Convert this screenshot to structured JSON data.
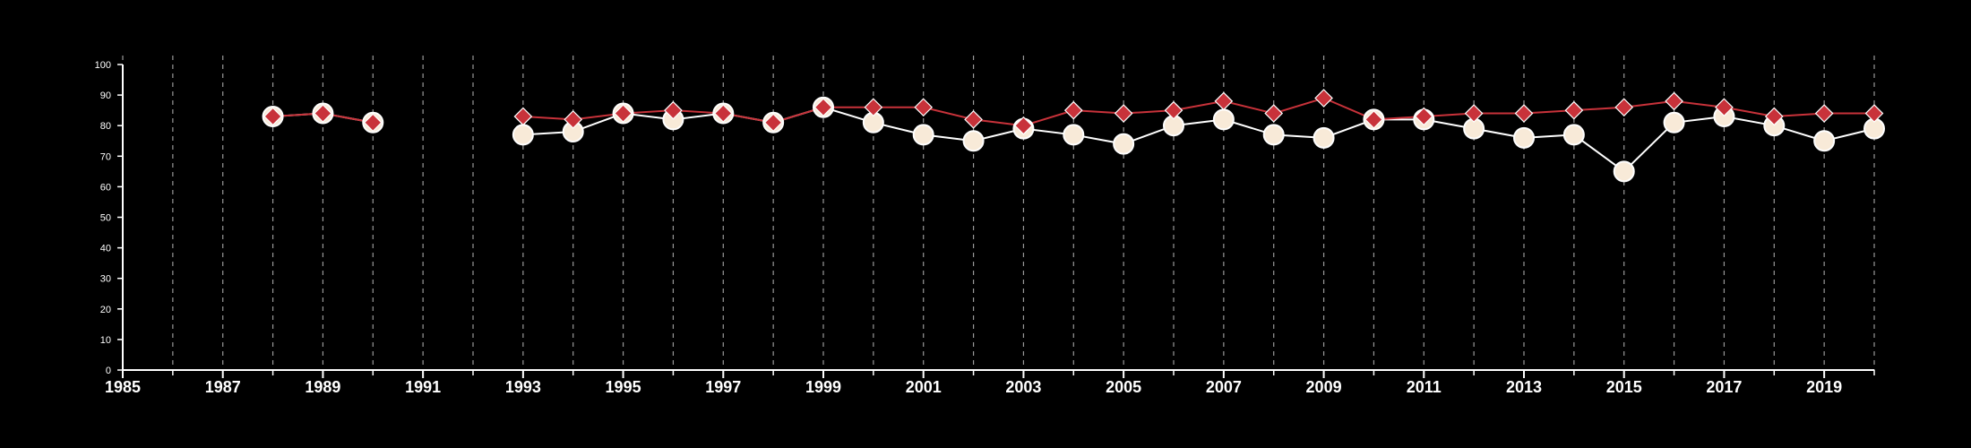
{
  "chart_data": {
    "type": "line",
    "title": "",
    "xlabel": "",
    "ylabel": "",
    "xlim": [
      1985,
      2020
    ],
    "ylim": [
      0,
      100
    ],
    "x_ticks": [
      1985,
      1987,
      1989,
      1991,
      1993,
      1995,
      1997,
      1999,
      2001,
      2003,
      2005,
      2007,
      2009,
      2011,
      2013,
      2015,
      2017,
      2019
    ],
    "x_tick_labels": [
      "1985",
      "1987",
      "1989",
      "1991",
      "1993",
      "1995",
      "1997",
      "1999",
      "2001",
      "2003",
      "2005",
      "2007",
      "2009",
      "2011",
      "2013",
      "2015",
      "2017",
      "2019"
    ],
    "y_ticks": [
      0,
      10,
      20,
      30,
      40,
      50,
      60,
      70,
      80,
      90,
      100
    ],
    "y_tick_labels": [
      "0",
      "10",
      "20",
      "30",
      "40",
      "50",
      "60",
      "70",
      "80",
      "90",
      "100"
    ],
    "grid": "vertical dashed lines at each year",
    "legend": "none",
    "series": [
      {
        "marker": "circle",
        "color": "#ffffff",
        "fill": "#f8ead8",
        "points": [
          [
            1988,
            83
          ],
          [
            1989,
            84
          ],
          [
            1990,
            81
          ],
          [
            1993,
            77
          ],
          [
            1994,
            78
          ],
          [
            1995,
            84
          ],
          [
            1996,
            82
          ],
          [
            1997,
            84
          ],
          [
            1998,
            81
          ],
          [
            1999,
            86
          ],
          [
            2000,
            81
          ],
          [
            2001,
            77
          ],
          [
            2002,
            75
          ],
          [
            2003,
            79
          ],
          [
            2004,
            77
          ],
          [
            2005,
            74
          ],
          [
            2006,
            80
          ],
          [
            2007,
            82
          ],
          [
            2008,
            77
          ],
          [
            2009,
            76
          ],
          [
            2010,
            82
          ],
          [
            2011,
            82
          ],
          [
            2012,
            79
          ],
          [
            2013,
            76
          ],
          [
            2014,
            77
          ],
          [
            2015,
            65
          ],
          [
            2016,
            81
          ],
          [
            2017,
            83
          ],
          [
            2018,
            80
          ],
          [
            2019,
            75
          ],
          [
            2020,
            79
          ]
        ]
      },
      {
        "marker": "diamond",
        "color": "#c8323a",
        "points": [
          [
            1988,
            83
          ],
          [
            1989,
            84
          ],
          [
            1990,
            81
          ],
          [
            1993,
            83
          ],
          [
            1994,
            82
          ],
          [
            1995,
            84
          ],
          [
            1996,
            85
          ],
          [
            1997,
            84
          ],
          [
            1998,
            81
          ],
          [
            1999,
            86
          ],
          [
            2000,
            86
          ],
          [
            2001,
            86
          ],
          [
            2002,
            82
          ],
          [
            2003,
            80
          ],
          [
            2004,
            85
          ],
          [
            2005,
            84
          ],
          [
            2006,
            85
          ],
          [
            2007,
            88
          ],
          [
            2008,
            84
          ],
          [
            2009,
            89
          ],
          [
            2010,
            82
          ],
          [
            2011,
            83
          ],
          [
            2012,
            84
          ],
          [
            2013,
            84
          ],
          [
            2014,
            85
          ],
          [
            2015,
            86
          ],
          [
            2016,
            88
          ],
          [
            2017,
            86
          ],
          [
            2018,
            83
          ],
          [
            2019,
            84
          ],
          [
            2020,
            84
          ]
        ]
      }
    ]
  }
}
